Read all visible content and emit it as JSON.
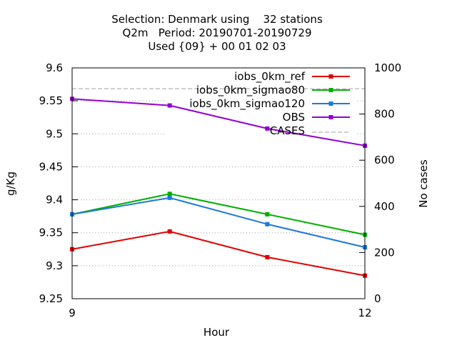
{
  "chart_data": {
    "type": "line",
    "title": [
      "Selection: Denmark using    32 stations",
      "Q2m   Period: 20190701-20190729",
      "Used {09} + 00 01 02 03"
    ],
    "xlabel": "Hour",
    "ylabel": "g/Kg",
    "y2label": "No cases",
    "xlim": [
      9,
      12
    ],
    "ylim": [
      9.25,
      9.6
    ],
    "y2lim": [
      0,
      1000
    ],
    "x_ticks": [
      "9",
      "12"
    ],
    "y_ticks": [
      "9.25",
      "9.3",
      "9.35",
      "9.4",
      "9.45",
      "9.5",
      "9.55",
      "9.6"
    ],
    "y2_ticks": [
      "0",
      "200",
      "400",
      "600",
      "800",
      "1000"
    ],
    "grid": true,
    "legend_position": "top-right",
    "x": [
      9,
      10,
      11,
      12
    ],
    "series": [
      {
        "name": "iobs_0km_ref",
        "color": "#e00000",
        "values": [
          9.325,
          9.352,
          9.313,
          9.285
        ]
      },
      {
        "name": "iobs_0km_sigmao80",
        "color": "#00b000",
        "values": [
          9.378,
          9.409,
          9.378,
          9.347
        ]
      },
      {
        "name": "iobs_0km_sigmao120",
        "color": "#1e78dc",
        "values": [
          9.378,
          9.403,
          9.363,
          9.328
        ]
      },
      {
        "name": "OBS",
        "color": "#9400d3",
        "values": [
          9.553,
          9.543,
          9.508,
          9.482
        ]
      }
    ],
    "cases": {
      "name": "CASES",
      "axis": "y2",
      "color": "#a0a0a0",
      "values": [
        910,
        910,
        910,
        910
      ]
    }
  }
}
